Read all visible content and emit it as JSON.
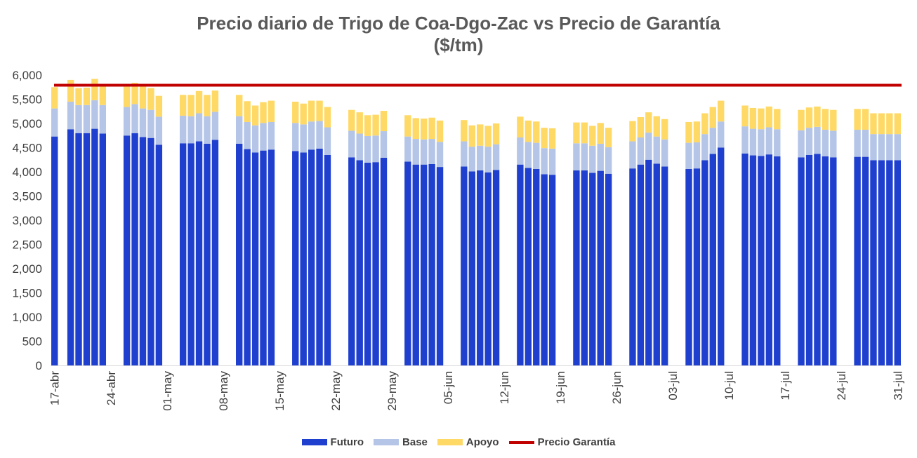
{
  "chart_data": {
    "type": "bar",
    "stacked": true,
    "title": "Precio diario de Trigo de Coa-Dgo-Zac vs Precio de Garantía",
    "subtitle": "($/tm)",
    "xlabel": "",
    "ylabel": "",
    "ylim": [
      0,
      6000
    ],
    "yticks": [
      "0",
      "500",
      "1,000",
      "1,500",
      "2,000",
      "2,500",
      "3,000",
      "3,500",
      "4,000",
      "4,500",
      "5,000",
      "5,500",
      "6,000"
    ],
    "xtick_labels": [
      "17-abr",
      "24-abr",
      "01-may",
      "08-may",
      "15-may",
      "22-may",
      "29-may",
      "05-jun",
      "12-jun",
      "19-jun",
      "26-jun",
      "03-jul",
      "10-jul",
      "17-jul",
      "24-jul",
      "31-jul"
    ],
    "grid": false,
    "legend_position": "bottom",
    "weeks": [
      {
        "futuro": [
          4730,
          null,
          4880,
          4800,
          4800,
          4890,
          4790
        ],
        "base": [
          580,
          null,
          570,
          580,
          580,
          590,
          590
        ],
        "apoyo": [
          440,
          null,
          450,
          350,
          360,
          440,
          410
        ]
      },
      {
        "futuro": [
          null,
          null,
          4750,
          4800,
          4720,
          4700,
          4560
        ],
        "base": [
          null,
          null,
          590,
          600,
          590,
          580,
          580
        ],
        "apoyo": [
          null,
          null,
          420,
          440,
          460,
          450,
          430
        ]
      },
      {
        "futuro": [
          null,
          null,
          4590,
          4590,
          4630,
          4580,
          4660
        ],
        "base": [
          null,
          null,
          570,
          560,
          580,
          570,
          580
        ],
        "apoyo": [
          null,
          null,
          430,
          440,
          460,
          440,
          440
        ]
      },
      {
        "futuro": [
          null,
          null,
          4580,
          4470,
          4400,
          4440,
          4460
        ],
        "base": [
          null,
          null,
          570,
          560,
          560,
          570,
          570
        ],
        "apoyo": [
          null,
          null,
          440,
          430,
          410,
          430,
          440
        ]
      },
      {
        "futuro": [
          null,
          null,
          4430,
          4400,
          4460,
          4480,
          4350
        ],
        "base": [
          null,
          null,
          580,
          580,
          580,
          570,
          570
        ],
        "apoyo": [
          null,
          null,
          440,
          430,
          430,
          420,
          420
        ]
      },
      {
        "futuro": [
          null,
          null,
          4300,
          4240,
          4190,
          4200,
          4290
        ],
        "base": [
          null,
          null,
          550,
          550,
          550,
          550,
          550
        ],
        "apoyo": [
          null,
          null,
          430,
          440,
          430,
          430,
          420
        ]
      },
      {
        "futuro": [
          null,
          null,
          4210,
          4150,
          4150,
          4160,
          4100
        ],
        "base": [
          null,
          null,
          520,
          530,
          520,
          520,
          520
        ],
        "apoyo": [
          null,
          null,
          440,
          430,
          430,
          440,
          440
        ]
      },
      {
        "futuro": [
          null,
          null,
          4110,
          4010,
          4030,
          3990,
          4040
        ],
        "base": [
          null,
          null,
          520,
          510,
          510,
          530,
          530
        ],
        "apoyo": [
          null,
          null,
          440,
          440,
          440,
          430,
          430
        ]
      },
      {
        "futuro": [
          null,
          null,
          4150,
          4080,
          4060,
          3950,
          3940
        ],
        "base": [
          null,
          null,
          560,
          540,
          540,
          540,
          540
        ],
        "apoyo": [
          null,
          null,
          430,
          440,
          440,
          420,
          420
        ]
      },
      {
        "futuro": [
          null,
          null,
          4030,
          4030,
          3980,
          4020,
          3960
        ],
        "base": [
          null,
          null,
          560,
          560,
          560,
          560,
          550
        ],
        "apoyo": [
          null,
          null,
          430,
          430,
          410,
          430,
          400
        ]
      },
      {
        "futuro": [
          null,
          null,
          4070,
          4150,
          4250,
          4170,
          4110
        ],
        "base": [
          null,
          null,
          560,
          560,
          560,
          560,
          560
        ],
        "apoyo": [
          null,
          null,
          420,
          420,
          420,
          420,
          420
        ]
      },
      {
        "futuro": [
          null,
          null,
          4060,
          4070,
          4240,
          4370,
          4500
        ],
        "base": [
          null,
          null,
          540,
          540,
          540,
          540,
          540
        ],
        "apoyo": [
          null,
          null,
          430,
          430,
          430,
          430,
          430
        ]
      },
      {
        "futuro": [
          null,
          null,
          4380,
          4340,
          4330,
          4360,
          4320
        ],
        "base": [
          null,
          null,
          560,
          550,
          550,
          560,
          560
        ],
        "apoyo": [
          null,
          null,
          430,
          430,
          430,
          430,
          420
        ]
      },
      {
        "futuro": [
          null,
          null,
          4300,
          4350,
          4370,
          4320,
          4300
        ],
        "base": [
          null,
          null,
          560,
          560,
          560,
          550,
          550
        ],
        "apoyo": [
          null,
          null,
          420,
          420,
          420,
          430,
          430
        ]
      },
      {
        "futuro": [
          null,
          null,
          4310,
          4310,
          4240,
          4240,
          4240
        ],
        "base": [
          null,
          null,
          560,
          560,
          540,
          540,
          540
        ],
        "apoyo": [
          null,
          null,
          430,
          430,
          430,
          430,
          430
        ]
      }
    ],
    "series": [
      {
        "name": "Futuro",
        "color": "#1f3fcf"
      },
      {
        "name": "Base",
        "color": "#b4c5e7"
      },
      {
        "name": "Apoyo",
        "color": "#ffd966"
      },
      {
        "name": "Precio Garantía",
        "color": "#c00000",
        "value": 5790
      }
    ]
  }
}
